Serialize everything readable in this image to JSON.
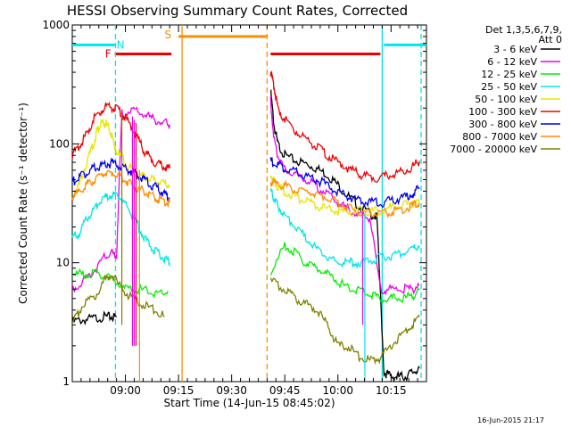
{
  "chart_data": {
    "type": "line",
    "title": "HESSI Observing Summary Count Rates, Corrected",
    "xlabel": "Start Time (14-Jun-15 08:45:02)",
    "ylabel": "Corrected Count Rate (s⁻¹ detector⁻¹)",
    "y_scale": "log",
    "ylim": [
      1,
      1000
    ],
    "x_unit": "minutes after 08:45:02",
    "xlim": [
      0,
      100
    ],
    "xticks": [
      {
        "label": "09:00",
        "x": 15
      },
      {
        "label": "09:15",
        "x": 30
      },
      {
        "label": "09:30",
        "x": 45
      },
      {
        "label": "09:45",
        "x": 60
      },
      {
        "label": "10:00",
        "x": 75
      },
      {
        "label": "10:15",
        "x": 90
      }
    ],
    "yticks": [
      {
        "label": "1",
        "v": 1
      },
      {
        "label": "10",
        "v": 10
      },
      {
        "label": "100",
        "v": 100
      },
      {
        "label": "1000",
        "v": 1000
      }
    ],
    "legend": {
      "position": "right",
      "header": [
        "Det 1,3,5,6,7,9,",
        "Att 0"
      ],
      "entries": [
        {
          "label": "3 - 6 keV",
          "color": "#000000"
        },
        {
          "label": "6 - 12 keV",
          "color": "#ee00ee"
        },
        {
          "label": "12 - 25 keV",
          "color": "#00ee00"
        },
        {
          "label": "25 - 50 keV",
          "color": "#00e6e6"
        },
        {
          "label": "50 - 100 keV",
          "color": "#e6e600"
        },
        {
          "label": "100 - 300 keV",
          "color": "#ee0000"
        },
        {
          "label": "300 - 800 keV",
          "color": "#0000ee"
        },
        {
          "label": "800 - 7000 keV",
          "color": "#ff8c00"
        },
        {
          "label": "7000 - 20000 keV",
          "color": "#808000"
        }
      ]
    },
    "segments": [
      {
        "name": "N",
        "y": 680,
        "color": "#00e6e6",
        "ranges": [
          [
            0,
            12
          ],
          [
            88,
            100
          ]
        ]
      },
      {
        "name": "F",
        "y": 570,
        "color": "#ee0000",
        "ranges": [
          [
            12,
            28
          ],
          [
            56,
            87
          ]
        ]
      },
      {
        "name": "S",
        "y": 800,
        "color": "#ff8c00",
        "ranges": [
          [
            30,
            55
          ]
        ]
      }
    ],
    "vlines": [
      {
        "x": 12.2,
        "color": "#00e6e6",
        "dash": true
      },
      {
        "x": 31,
        "color": "#ff8c00",
        "dash": false
      },
      {
        "x": 55,
        "color": "#ff8c00",
        "dash": true
      },
      {
        "x": 87.5,
        "color": "#00e6e6",
        "dash": false
      },
      {
        "x": 98.5,
        "color": "#00e6e6",
        "dash": true
      }
    ],
    "series": [
      {
        "color": "#000000",
        "pre": [
          [
            0,
            3.2
          ],
          [
            3,
            3.3
          ],
          [
            6,
            3.4
          ],
          [
            9,
            3.5
          ],
          [
            11,
            3.5
          ],
          [
            12.5,
            3.5
          ]
        ],
        "post": [
          [
            56,
            280
          ],
          [
            57,
            140
          ],
          [
            58,
            100
          ],
          [
            60,
            80
          ],
          [
            63,
            72
          ],
          [
            66,
            68
          ],
          [
            69,
            62
          ],
          [
            72,
            55
          ],
          [
            75,
            45
          ],
          [
            78,
            36
          ],
          [
            81,
            30
          ],
          [
            84,
            26
          ],
          [
            86,
            24
          ],
          [
            88,
            1.2
          ],
          [
            90,
            1.1
          ],
          [
            92,
            1.1
          ],
          [
            94,
            1.1
          ],
          [
            96,
            1.2
          ],
          [
            98,
            1.3
          ]
        ]
      },
      {
        "color": "#ee00ee",
        "pre": [
          [
            0,
            6
          ],
          [
            3,
            7
          ],
          [
            6,
            8.5
          ],
          [
            9,
            11
          ],
          [
            11,
            12
          ],
          [
            12.5,
            11.5
          ],
          [
            14,
            180
          ],
          [
            17,
            190
          ],
          [
            20,
            180
          ],
          [
            23,
            160
          ],
          [
            26,
            150
          ],
          [
            27.5,
            145
          ]
        ],
        "post": [
          [
            56,
            230
          ],
          [
            57,
            110
          ],
          [
            58,
            80
          ],
          [
            60,
            60
          ],
          [
            63,
            55
          ],
          [
            66,
            50
          ],
          [
            69,
            44
          ],
          [
            72,
            38
          ],
          [
            75,
            32
          ],
          [
            78,
            28
          ],
          [
            81,
            25
          ],
          [
            84,
            24
          ],
          [
            87,
            6
          ],
          [
            90,
            6
          ],
          [
            93,
            6
          ],
          [
            96,
            6
          ],
          [
            98,
            6.5
          ]
        ]
      },
      {
        "color": "#00ee00",
        "pre": [
          [
            0,
            8
          ],
          [
            3,
            8
          ],
          [
            6,
            8
          ],
          [
            9,
            8
          ],
          [
            12,
            7
          ],
          [
            15,
            6
          ],
          [
            18,
            6
          ],
          [
            21,
            5.8
          ],
          [
            24,
            5.5
          ],
          [
            27,
            5.8
          ]
        ],
        "post": [
          [
            56,
            8
          ],
          [
            60,
            14
          ],
          [
            63,
            12
          ],
          [
            66,
            10
          ],
          [
            69,
            9
          ],
          [
            72,
            8
          ],
          [
            75,
            7
          ],
          [
            78,
            6
          ],
          [
            81,
            6
          ],
          [
            84,
            5.5
          ],
          [
            87,
            5
          ],
          [
            90,
            5
          ],
          [
            93,
            5
          ],
          [
            96,
            5.2
          ],
          [
            98,
            6
          ]
        ]
      },
      {
        "color": "#00e6e6",
        "pre": [
          [
            0,
            16
          ],
          [
            2,
            18
          ],
          [
            4,
            23
          ],
          [
            6,
            28
          ],
          [
            8,
            33
          ],
          [
            10,
            36
          ],
          [
            12,
            37
          ],
          [
            14,
            34
          ],
          [
            16,
            28
          ],
          [
            18,
            22
          ],
          [
            20,
            17
          ],
          [
            22,
            14
          ],
          [
            24,
            12
          ],
          [
            26,
            11
          ],
          [
            27.5,
            10
          ]
        ],
        "post": [
          [
            56,
            40
          ],
          [
            57,
            35
          ],
          [
            58,
            30
          ],
          [
            60,
            25
          ],
          [
            63,
            20
          ],
          [
            66,
            16
          ],
          [
            69,
            13
          ],
          [
            72,
            11
          ],
          [
            75,
            10
          ],
          [
            78,
            10
          ],
          [
            81,
            10
          ],
          [
            84,
            10.5
          ],
          [
            87,
            11
          ],
          [
            90,
            11.5
          ],
          [
            93,
            12
          ],
          [
            96,
            13
          ],
          [
            98,
            14
          ]
        ]
      },
      {
        "color": "#e6e600",
        "pre": [
          [
            0,
            35
          ],
          [
            2,
            45
          ],
          [
            4,
            70
          ],
          [
            6,
            100
          ],
          [
            7,
            130
          ],
          [
            8,
            145
          ],
          [
            9,
            150
          ],
          [
            10,
            140
          ],
          [
            11,
            120
          ],
          [
            12,
            95
          ],
          [
            14,
            75
          ],
          [
            16,
            65
          ],
          [
            18,
            58
          ],
          [
            20,
            53
          ],
          [
            22,
            50
          ],
          [
            24,
            48
          ],
          [
            26,
            46
          ],
          [
            27.5,
            45
          ]
        ],
        "post": [
          [
            56,
            55
          ],
          [
            57,
            48
          ],
          [
            58,
            44
          ],
          [
            60,
            40
          ],
          [
            63,
            36
          ],
          [
            66,
            33
          ],
          [
            69,
            30
          ],
          [
            72,
            28
          ],
          [
            75,
            27
          ],
          [
            78,
            27
          ],
          [
            81,
            27
          ],
          [
            84,
            27
          ],
          [
            87,
            28
          ],
          [
            90,
            29
          ],
          [
            93,
            30
          ],
          [
            96,
            31
          ],
          [
            98,
            32
          ]
        ]
      },
      {
        "color": "#ee0000",
        "pre": [
          [
            0,
            80
          ],
          [
            2,
            95
          ],
          [
            4,
            120
          ],
          [
            6,
            160
          ],
          [
            8,
            190
          ],
          [
            10,
            210
          ],
          [
            12,
            200
          ],
          [
            14,
            180
          ],
          [
            16,
            150
          ],
          [
            18,
            120
          ],
          [
            20,
            90
          ],
          [
            22,
            75
          ],
          [
            24,
            68
          ],
          [
            26,
            64
          ],
          [
            27.5,
            62
          ]
        ],
        "post": [
          [
            56,
            400
          ],
          [
            57,
            300
          ],
          [
            58,
            200
          ],
          [
            60,
            160
          ],
          [
            63,
            130
          ],
          [
            66,
            110
          ],
          [
            69,
            95
          ],
          [
            72,
            80
          ],
          [
            75,
            70
          ],
          [
            78,
            62
          ],
          [
            81,
            56
          ],
          [
            84,
            52
          ],
          [
            87,
            52
          ],
          [
            90,
            55
          ],
          [
            93,
            58
          ],
          [
            96,
            64
          ],
          [
            98,
            72
          ]
        ]
      },
      {
        "color": "#0000ee",
        "pre": [
          [
            0,
            48
          ],
          [
            2,
            52
          ],
          [
            4,
            57
          ],
          [
            6,
            62
          ],
          [
            8,
            66
          ],
          [
            10,
            68
          ],
          [
            12,
            68
          ],
          [
            14,
            65
          ],
          [
            16,
            60
          ],
          [
            18,
            55
          ],
          [
            20,
            50
          ],
          [
            22,
            46
          ],
          [
            24,
            42
          ],
          [
            26,
            38
          ],
          [
            27.5,
            35
          ]
        ],
        "post": [
          [
            56,
            72
          ],
          [
            58,
            66
          ],
          [
            60,
            62
          ],
          [
            63,
            58
          ],
          [
            66,
            54
          ],
          [
            69,
            50
          ],
          [
            72,
            45
          ],
          [
            75,
            40
          ],
          [
            78,
            36
          ],
          [
            81,
            33
          ],
          [
            84,
            32
          ],
          [
            87,
            32
          ],
          [
            90,
            33
          ],
          [
            93,
            35
          ],
          [
            96,
            38
          ],
          [
            98,
            42
          ]
        ]
      },
      {
        "color": "#ff8c00",
        "pre": [
          [
            0,
            36
          ],
          [
            2,
            40
          ],
          [
            4,
            45
          ],
          [
            6,
            50
          ],
          [
            8,
            55
          ],
          [
            10,
            58
          ],
          [
            12,
            56
          ],
          [
            14,
            52
          ],
          [
            16,
            47
          ],
          [
            18,
            43
          ],
          [
            20,
            40
          ],
          [
            22,
            37
          ],
          [
            24,
            35
          ],
          [
            26,
            33
          ],
          [
            27.5,
            32
          ]
        ],
        "post": [
          [
            56,
            48
          ],
          [
            58,
            46
          ],
          [
            60,
            44
          ],
          [
            63,
            42
          ],
          [
            66,
            40
          ],
          [
            69,
            38
          ],
          [
            72,
            35
          ],
          [
            75,
            32
          ],
          [
            78,
            29
          ],
          [
            81,
            27
          ],
          [
            84,
            26
          ],
          [
            87,
            26
          ],
          [
            90,
            27
          ],
          [
            93,
            28
          ],
          [
            96,
            30
          ],
          [
            98,
            32
          ]
        ]
      },
      {
        "color": "#808000",
        "pre": [
          [
            0,
            3
          ],
          [
            3,
            4.5
          ],
          [
            6,
            5
          ],
          [
            9,
            7
          ],
          [
            11,
            8
          ],
          [
            14,
            6
          ],
          [
            17,
            5
          ],
          [
            20,
            4.5
          ],
          [
            23,
            4
          ],
          [
            26,
            3.5
          ]
        ],
        "post": [
          [
            56,
            7
          ],
          [
            60,
            6
          ],
          [
            63,
            5
          ],
          [
            66,
            4.5
          ],
          [
            69,
            4
          ],
          [
            72,
            3
          ],
          [
            75,
            2
          ],
          [
            78,
            2
          ],
          [
            81,
            1.6
          ],
          [
            84,
            1.5
          ],
          [
            87,
            1.6
          ],
          [
            90,
            2
          ],
          [
            93,
            2.5
          ],
          [
            96,
            3
          ],
          [
            98,
            3.5
          ]
        ]
      }
    ],
    "spikes": [
      {
        "x": 17,
        "from": 2,
        "to": 170,
        "color": "#ee00ee"
      },
      {
        "x": 17.5,
        "from": 2,
        "to": 160,
        "color": "#ee00ee"
      },
      {
        "x": 18,
        "from": 2,
        "to": 150,
        "color": "#ee0000"
      },
      {
        "x": 14,
        "from": 3,
        "to": 180,
        "color": "#808000"
      },
      {
        "x": 19,
        "from": 1,
        "to": 60,
        "color": "#ff8c00"
      },
      {
        "x": 82,
        "from": 3,
        "to": 27,
        "color": "#ee00ee"
      },
      {
        "x": 82.6,
        "from": 1,
        "to": 26,
        "color": "#00e6e6"
      }
    ]
  },
  "footer": {
    "date": "16-Jun-2015 21:17"
  }
}
